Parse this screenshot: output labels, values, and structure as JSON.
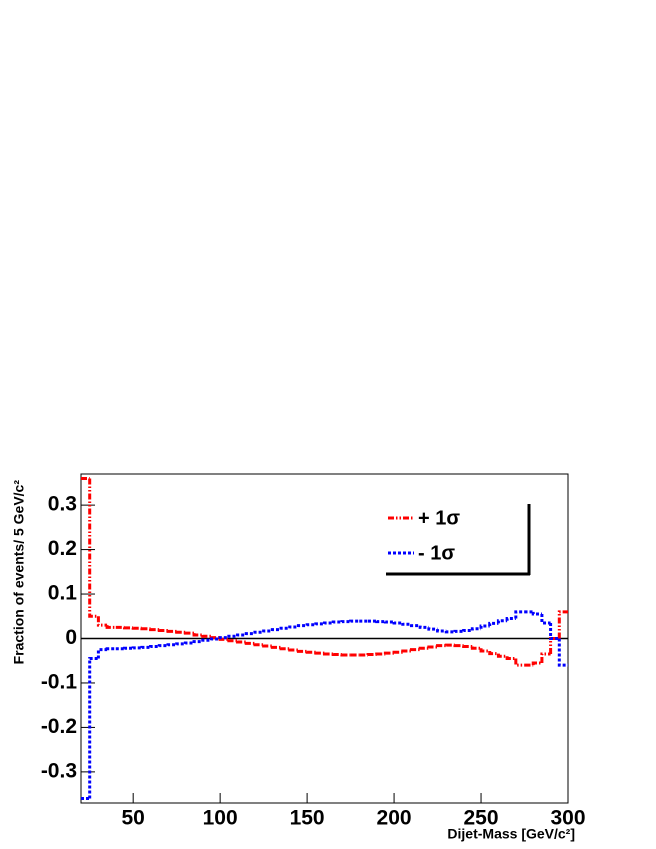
{
  "chart_data": {
    "type": "histogram",
    "xlabel": "Dijet-Mass [GeV/c²]",
    "ylabel": "Fraction of events/ 5 GeV/c²",
    "bins": [
      20,
      25,
      30,
      35,
      40,
      45,
      50,
      55,
      60,
      65,
      70,
      75,
      80,
      85,
      90,
      95,
      100,
      105,
      110,
      115,
      120,
      125,
      130,
      135,
      140,
      145,
      150,
      155,
      160,
      165,
      170,
      175,
      180,
      185,
      190,
      195,
      200,
      205,
      210,
      215,
      220,
      225,
      230,
      235,
      240,
      245,
      250,
      255,
      260,
      265,
      270,
      275,
      280,
      285,
      290,
      295,
      300
    ],
    "series": [
      {
        "name": "+ 1σ",
        "color": "#ff0000",
        "dash": "dash-dot-dot",
        "values": [
          0.36,
          0.05,
          0.03,
          0.025,
          0.025,
          0.024,
          0.023,
          0.022,
          0.02,
          0.018,
          0.016,
          0.014,
          0.012,
          0.008,
          0.005,
          0.002,
          -0.002,
          -0.005,
          -0.008,
          -0.011,
          -0.014,
          -0.017,
          -0.02,
          -0.023,
          -0.026,
          -0.029,
          -0.031,
          -0.033,
          -0.035,
          -0.036,
          -0.037,
          -0.037,
          -0.037,
          -0.036,
          -0.035,
          -0.033,
          -0.031,
          -0.028,
          -0.025,
          -0.022,
          -0.019,
          -0.016,
          -0.015,
          -0.016,
          -0.018,
          -0.022,
          -0.028,
          -0.034,
          -0.04,
          -0.045,
          -0.06,
          -0.06,
          -0.055,
          -0.035,
          0.0,
          0.06
        ]
      },
      {
        "name": "- 1σ",
        "color": "#0000ff",
        "dash": "dotted",
        "values": [
          -0.36,
          -0.045,
          -0.025,
          -0.023,
          -0.023,
          -0.022,
          -0.021,
          -0.02,
          -0.018,
          -0.016,
          -0.014,
          -0.012,
          -0.01,
          -0.007,
          -0.004,
          -0.001,
          0.002,
          0.005,
          0.008,
          0.011,
          0.014,
          0.017,
          0.02,
          0.023,
          0.026,
          0.029,
          0.031,
          0.033,
          0.035,
          0.037,
          0.038,
          0.039,
          0.039,
          0.039,
          0.038,
          0.037,
          0.035,
          0.032,
          0.029,
          0.025,
          0.021,
          0.017,
          0.015,
          0.016,
          0.018,
          0.022,
          0.028,
          0.034,
          0.04,
          0.045,
          0.06,
          0.06,
          0.055,
          0.035,
          0.0,
          -0.06
        ]
      }
    ],
    "xlim": [
      20,
      300
    ],
    "xticks": [
      50,
      100,
      150,
      200,
      250,
      300
    ],
    "ylim": [
      -0.37,
      0.37
    ],
    "yticks": [
      -0.3,
      -0.2,
      -0.1,
      0,
      0.1,
      0.2,
      0.3
    ],
    "legend": "top-right"
  }
}
